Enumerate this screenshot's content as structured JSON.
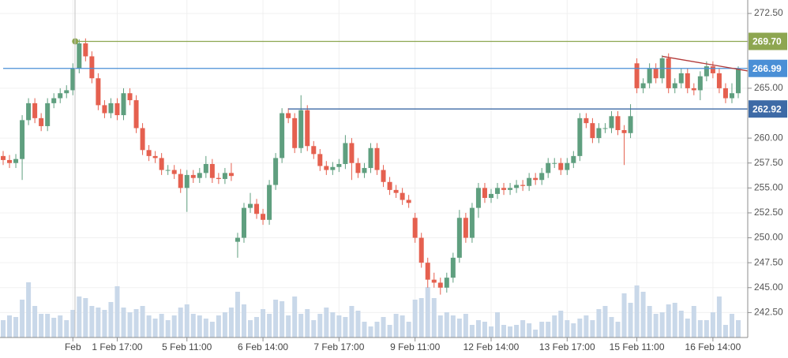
{
  "chart_data": {
    "type": "candlestick",
    "ylim": [
      240.0,
      273.85
    ],
    "yticks": [
      {
        "value": 272.5,
        "label": "272.50"
      },
      {
        "value": 265,
        "label": "265.00"
      },
      {
        "value": 260,
        "label": "260.00"
      },
      {
        "value": 257.5,
        "label": "257.50"
      },
      {
        "value": 255,
        "label": "255.00"
      },
      {
        "value": 252.5,
        "label": "252.50"
      },
      {
        "value": 250,
        "label": "250.00"
      },
      {
        "value": 247.5,
        "label": "247.50"
      },
      {
        "value": 245,
        "label": "245.00"
      },
      {
        "value": 242.5,
        "label": "242.50"
      }
    ],
    "grid": true,
    "up_color": "#5f9f7f",
    "down_color": "#e5604f",
    "volume_color": "#c9d8e9",
    "categories": [
      null,
      null,
      null,
      null,
      null,
      null,
      null,
      null,
      null,
      null,
      null,
      "Feb",
      null,
      null,
      null,
      null,
      null,
      null,
      "1 Feb 17:00",
      null,
      null,
      null,
      null,
      null,
      null,
      null,
      null,
      null,
      null,
      "5 Feb 11:00",
      null,
      null,
      null,
      null,
      null,
      null,
      null,
      null,
      null,
      null,
      null,
      "6 Feb 14:00",
      null,
      null,
      null,
      null,
      null,
      null,
      null,
      null,
      null,
      null,
      null,
      "7 Feb 17:00",
      null,
      null,
      null,
      null,
      null,
      null,
      null,
      null,
      null,
      null,
      null,
      "9 Feb 11:00",
      null,
      null,
      null,
      null,
      null,
      null,
      null,
      null,
      null,
      null,
      null,
      "12 Feb 14:00",
      null,
      null,
      null,
      null,
      null,
      null,
      null,
      null,
      null,
      null,
      null,
      "13 Feb 17:00",
      null,
      null,
      null,
      null,
      null,
      null,
      null,
      null,
      null,
      null,
      "15 Feb 11:00",
      null,
      null,
      null,
      null,
      null,
      null,
      null,
      null,
      null,
      null,
      null,
      "16 Feb 14:00",
      null,
      null,
      null,
      null
    ],
    "open": [
      258.2,
      257.8,
      257.5,
      257.9,
      261.8,
      263.5,
      262.0,
      261.2,
      263.5,
      264.0,
      264.5,
      264.8,
      267.0,
      269.5,
      268.2,
      266.0,
      263.3,
      262.5,
      263.5,
      262.3,
      264.5,
      263.8,
      261.0,
      258.8,
      258.2,
      258.0,
      256.8,
      256.8,
      256.4,
      255.0,
      256.3,
      256.0,
      256.5,
      257.4,
      256.0,
      255.9,
      256.5,
      249.6,
      250.0,
      253.0,
      253.4,
      252.4,
      251.8,
      255.3,
      258.0,
      262.5,
      262.0,
      259.0,
      262.8,
      259.2,
      258.4,
      257.2,
      256.8,
      257.1,
      257.4,
      259.5,
      257.5,
      256.5,
      257.0,
      259.0,
      256.8,
      255.6,
      254.8,
      254.5,
      253.8,
      252.0,
      250.0,
      247.5,
      245.8,
      245.5,
      245.0,
      246.0,
      248.0,
      252.0,
      250.0,
      253.0,
      255.0,
      254.0,
      254.4,
      255.0,
      254.8,
      255.0,
      255.3,
      255.2,
      256.0,
      255.8,
      256.5,
      257.5,
      257.5,
      256.8,
      257.5,
      258.2,
      262.0,
      261.5,
      260.0,
      261.0,
      261.0,
      262.2,
      260.8,
      260.5,
      267.5,
      265.0,
      265.5,
      267.0,
      266.0,
      268.0,
      265.0,
      265.5,
      266.5,
      265.0,
      264.8,
      266.2,
      267.2,
      266.5,
      265.0,
      264.0,
      264.5
    ],
    "high": [
      258.7,
      258.3,
      258.4,
      262.3,
      264.0,
      264.0,
      262.5,
      264.0,
      264.5,
      265.0,
      265.3,
      267.5,
      269.9,
      270.0,
      268.7,
      266.5,
      263.8,
      264.0,
      264.0,
      265.0,
      265.0,
      264.3,
      261.5,
      259.3,
      258.7,
      258.5,
      257.3,
      257.3,
      256.9,
      256.8,
      256.8,
      257.0,
      258.2,
      257.9,
      256.5,
      257.0,
      257.5,
      250.5,
      253.5,
      254.5,
      253.9,
      252.9,
      255.8,
      258.5,
      263.0,
      263.0,
      262.5,
      264.3,
      263.3,
      259.7,
      258.9,
      257.7,
      257.6,
      257.9,
      260.3,
      260.0,
      258.0,
      257.5,
      259.5,
      259.5,
      257.3,
      256.1,
      255.3,
      255.0,
      254.3,
      252.5,
      250.5,
      248.0,
      246.5,
      246.0,
      246.5,
      248.5,
      252.8,
      252.5,
      253.5,
      255.5,
      255.5,
      254.9,
      255.5,
      255.5,
      255.5,
      255.8,
      255.8,
      256.5,
      256.5,
      257.0,
      258.0,
      258.0,
      258.0,
      258.0,
      258.7,
      262.5,
      262.5,
      262.0,
      261.5,
      261.5,
      262.7,
      262.7,
      261.3,
      263.4,
      268.0,
      266.0,
      267.5,
      267.5,
      268.3,
      268.5,
      266.0,
      267.0,
      267.0,
      265.5,
      266.7,
      267.7,
      267.7,
      267.0,
      265.5,
      265.5,
      267.2
    ],
    "low": [
      257.3,
      257.0,
      257.0,
      255.8,
      261.3,
      261.5,
      260.7,
      260.7,
      263.0,
      263.5,
      264.0,
      264.3,
      266.5,
      267.7,
      265.5,
      262.8,
      262.0,
      262.0,
      261.8,
      261.8,
      263.3,
      260.5,
      258.3,
      257.7,
      257.5,
      256.3,
      256.3,
      255.9,
      254.5,
      252.6,
      255.5,
      255.5,
      256.0,
      255.5,
      255.4,
      255.4,
      255.7,
      248.0,
      249.5,
      252.5,
      251.9,
      251.3,
      251.3,
      254.8,
      257.5,
      261.5,
      258.5,
      258.5,
      258.7,
      257.9,
      256.7,
      256.3,
      256.3,
      256.6,
      256.9,
      255.8,
      256.0,
      256.0,
      256.5,
      256.3,
      255.1,
      254.3,
      254.0,
      253.3,
      253.0,
      249.5,
      247.0,
      245.0,
      245.0,
      244.3,
      244.5,
      245.5,
      247.5,
      249.5,
      249.5,
      252.0,
      253.5,
      253.5,
      253.9,
      254.3,
      254.3,
      254.5,
      254.7,
      254.7,
      255.3,
      255.3,
      256.0,
      257.0,
      256.3,
      256.3,
      257.0,
      257.7,
      261.0,
      259.5,
      259.5,
      260.5,
      260.5,
      260.3,
      257.3,
      260.0,
      264.5,
      264.5,
      265.0,
      265.5,
      265.5,
      264.5,
      264.5,
      265.0,
      264.5,
      264.3,
      263.8,
      265.7,
      266.0,
      264.5,
      263.5,
      263.5,
      264.0
    ],
    "close": [
      257.8,
      257.5,
      257.9,
      261.8,
      263.5,
      262.0,
      261.2,
      263.5,
      264.0,
      264.5,
      264.8,
      267.0,
      269.5,
      268.2,
      266.0,
      263.3,
      262.5,
      263.5,
      262.3,
      264.5,
      263.8,
      261.0,
      258.8,
      258.2,
      258.0,
      256.8,
      256.8,
      256.4,
      255.0,
      256.3,
      256.0,
      256.5,
      257.4,
      256.0,
      255.9,
      256.5,
      256.2,
      250.0,
      253.0,
      253.4,
      252.4,
      251.8,
      255.3,
      258.0,
      262.5,
      262.0,
      259.0,
      262.8,
      259.2,
      258.4,
      257.2,
      256.8,
      257.1,
      257.4,
      259.5,
      257.5,
      256.5,
      257.0,
      259.0,
      256.8,
      255.6,
      254.8,
      254.5,
      253.8,
      253.5,
      250.0,
      247.5,
      245.8,
      245.5,
      245.0,
      246.0,
      248.0,
      252.0,
      250.0,
      253.0,
      255.0,
      254.0,
      254.4,
      255.0,
      254.8,
      255.0,
      255.3,
      255.2,
      256.0,
      255.8,
      256.5,
      257.5,
      257.5,
      256.8,
      257.5,
      258.2,
      262.0,
      261.5,
      260.0,
      261.0,
      261.0,
      262.2,
      260.8,
      260.5,
      262.2,
      265.0,
      265.5,
      267.0,
      266.0,
      268.0,
      265.0,
      265.5,
      266.5,
      265.0,
      264.8,
      266.2,
      267.2,
      266.5,
      265.0,
      264.0,
      264.5,
      266.9
    ],
    "vlim": [
      0,
      100
    ],
    "volume": [
      22,
      28,
      26,
      48,
      70,
      40,
      30,
      30,
      25,
      28,
      22,
      35,
      52,
      50,
      40,
      38,
      35,
      45,
      65,
      38,
      32,
      36,
      40,
      28,
      24,
      30,
      22,
      28,
      38,
      42,
      30,
      28,
      24,
      20,
      28,
      32,
      38,
      58,
      42,
      22,
      26,
      36,
      30,
      48,
      46,
      28,
      52,
      30,
      36,
      22,
      30,
      38,
      32,
      28,
      26,
      40,
      34,
      20,
      14,
      20,
      26,
      16,
      30,
      28,
      20,
      48,
      50,
      64,
      50,
      28,
      32,
      28,
      24,
      30,
      16,
      22,
      20,
      14,
      32,
      16,
      14,
      16,
      22,
      18,
      10,
      20,
      20,
      28,
      34,
      22,
      18,
      24,
      28,
      22,
      36,
      40,
      26,
      20,
      56,
      44,
      66,
      58,
      40,
      30,
      32,
      42,
      44,
      34,
      24,
      40,
      22,
      22,
      32,
      52,
      16,
      30,
      22
    ],
    "levels": [
      {
        "value": 269.7,
        "label": "269.70",
        "color": "#8da650",
        "from": 11,
        "dot": true
      },
      {
        "value": 266.99,
        "label": "266.99",
        "color": "#4a8fd6",
        "from": 0
      },
      {
        "value": 262.92,
        "label": "262.92",
        "color": "#3d6aa6",
        "from": 45
      }
    ],
    "trendline": {
      "color": "#b23a3a",
      "from": [
        104,
        268.2
      ],
      "to": [
        116,
        266.9
      ]
    }
  }
}
